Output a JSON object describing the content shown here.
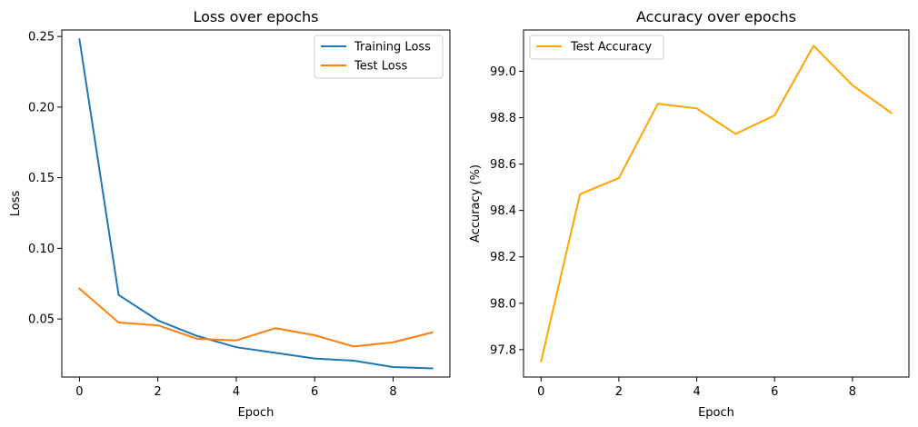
{
  "chart_data": [
    {
      "type": "line",
      "title": "Loss over epochs",
      "xlabel": "Epoch",
      "ylabel": "Loss",
      "x": [
        0,
        1,
        2,
        3,
        4,
        5,
        6,
        7,
        8,
        9
      ],
      "xlim": [
        -0.45,
        9.45
      ],
      "ylim": [
        0.0089,
        0.2546
      ],
      "xticks": [
        0,
        2,
        4,
        6,
        8
      ],
      "xtick_labels": [
        "0",
        "2",
        "4",
        "6",
        "8"
      ],
      "yticks": [
        0.05,
        0.1,
        0.15,
        0.2,
        0.25
      ],
      "ytick_labels": [
        "0.05",
        "0.10",
        "0.15",
        "0.20",
        "0.25"
      ],
      "grid": false,
      "legend": "upper-right",
      "series": [
        {
          "name": "Training Loss",
          "color": "#1f77b4",
          "values": [
            0.248,
            0.067,
            0.049,
            0.038,
            0.03,
            0.026,
            0.022,
            0.0205,
            0.016,
            0.015
          ]
        },
        {
          "name": "Test Loss",
          "color": "#ff7f0e",
          "values": [
            0.0715,
            0.0475,
            0.0455,
            0.036,
            0.0348,
            0.0435,
            0.0385,
            0.0305,
            0.0335,
            0.0405
          ]
        }
      ]
    },
    {
      "type": "line",
      "title": "Accuracy over epochs",
      "xlabel": "Epoch",
      "ylabel": "Accuracy (%)",
      "x": [
        0,
        1,
        2,
        3,
        4,
        5,
        6,
        7,
        8,
        9
      ],
      "xlim": [
        -0.45,
        9.45
      ],
      "ylim": [
        97.682,
        99.178
      ],
      "xticks": [
        0,
        2,
        4,
        6,
        8
      ],
      "xtick_labels": [
        "0",
        "2",
        "4",
        "6",
        "8"
      ],
      "yticks": [
        97.8,
        98.0,
        98.2,
        98.4,
        98.6,
        98.8,
        99.0
      ],
      "ytick_labels": [
        "97.8",
        "98.0",
        "98.2",
        "98.4",
        "98.6",
        "98.8",
        "99.0"
      ],
      "grid": false,
      "legend": "upper-left",
      "series": [
        {
          "name": "Test Accuracy",
          "color": "#ffa500",
          "values": [
            97.75,
            98.47,
            98.54,
            98.86,
            98.84,
            98.73,
            98.81,
            99.11,
            98.94,
            98.82
          ]
        }
      ]
    }
  ]
}
